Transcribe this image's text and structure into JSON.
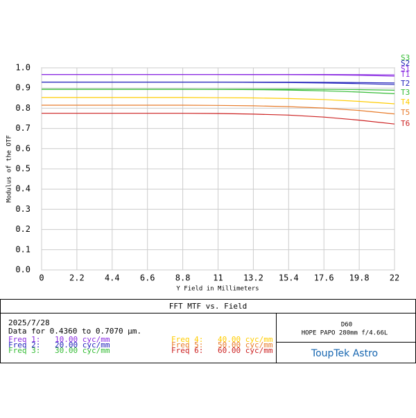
{
  "chart_data": {
    "type": "line",
    "xlabel": "Y Field in Millimeters",
    "ylabel": "Modulus of the OTF",
    "x": [
      0,
      2.2,
      4.4,
      6.6,
      8.8,
      11,
      13.2,
      15.4,
      17.6,
      19.8,
      22
    ],
    "xlim": [
      0,
      22
    ],
    "xticks": [
      0,
      2.2,
      4.4,
      6.6,
      8.8,
      11,
      13.2,
      15.4,
      17.6,
      19.8,
      22
    ],
    "ylim": [
      0,
      1
    ],
    "yticks": [
      {
        "value": 0,
        "label": "0.0"
      },
      {
        "value": 0.1,
        "label": "0.1"
      },
      {
        "value": 0.2,
        "label": "0.2"
      },
      {
        "value": 0.3,
        "label": "0.3"
      },
      {
        "value": 0.4,
        "label": "0.4"
      },
      {
        "value": 0.5,
        "label": "0.5"
      },
      {
        "value": 0.6,
        "label": "0.6"
      },
      {
        "value": 0.7,
        "label": "0.7"
      },
      {
        "value": 0.8,
        "label": "0.8"
      },
      {
        "value": 0.9,
        "label": "0.9"
      },
      {
        "value": 1,
        "label": "1.0"
      }
    ],
    "grid": true,
    "series": [
      {
        "name": "S3",
        "color": "#33bb33",
        "values": [
          0.894,
          0.894,
          0.894,
          0.894,
          0.894,
          0.894,
          0.894,
          0.894,
          0.893,
          0.892,
          0.889
        ]
      },
      {
        "name": "S2",
        "color": "#2222bb",
        "values": [
          0.929,
          0.929,
          0.929,
          0.929,
          0.929,
          0.929,
          0.929,
          0.929,
          0.928,
          0.927,
          0.925
        ]
      },
      {
        "name": "S1",
        "color": "#8a2be2",
        "values": [
          0.967,
          0.967,
          0.967,
          0.967,
          0.967,
          0.967,
          0.967,
          0.967,
          0.967,
          0.966,
          0.965
        ]
      },
      {
        "name": "T1",
        "color": "#8a2be2",
        "values": [
          0.967,
          0.967,
          0.967,
          0.967,
          0.967,
          0.967,
          0.966,
          0.966,
          0.965,
          0.963,
          0.959
        ]
      },
      {
        "name": "T2",
        "color": "#2222bb",
        "values": [
          0.929,
          0.929,
          0.929,
          0.929,
          0.929,
          0.929,
          0.928,
          0.927,
          0.925,
          0.922,
          0.917
        ]
      },
      {
        "name": "T3",
        "color": "#33bb33",
        "values": [
          0.894,
          0.894,
          0.894,
          0.894,
          0.894,
          0.893,
          0.892,
          0.89,
          0.886,
          0.88,
          0.872
        ]
      },
      {
        "name": "T4",
        "color": "#ffcc00",
        "values": [
          0.853,
          0.853,
          0.853,
          0.853,
          0.853,
          0.852,
          0.851,
          0.848,
          0.843,
          0.834,
          0.822
        ]
      },
      {
        "name": "T5",
        "color": "#e87b2a",
        "values": [
          0.815,
          0.815,
          0.815,
          0.815,
          0.815,
          0.814,
          0.812,
          0.808,
          0.801,
          0.789,
          0.772
        ]
      },
      {
        "name": "T6",
        "color": "#cc1f1f",
        "values": [
          0.775,
          0.775,
          0.775,
          0.775,
          0.775,
          0.774,
          0.771,
          0.766,
          0.756,
          0.741,
          0.722
        ]
      }
    ],
    "panel": {
      "title": "FFT MTF vs. Field",
      "date": "2025/7/28",
      "range": "Data for 0.4360 to 0.7070 µm.",
      "legend": [
        {
          "label": "Freq 1:",
          "value": "10.00 cyc/mm",
          "color": "#8a2be2"
        },
        {
          "label": "Freq 2:",
          "value": "20.00 cyc/mm",
          "color": "#2222bb"
        },
        {
          "label": "Freq 3:",
          "value": "30.00 cyc/mm",
          "color": "#33bb33"
        },
        {
          "label": "Freq 4:",
          "value": "40.00 cyc/mm",
          "color": "#ffcc00"
        },
        {
          "label": "Freq 5:",
          "value": "50.00 cyc/mm",
          "color": "#e87b2a"
        },
        {
          "label": "Freq 6:",
          "value": "60.00 cyc/mm",
          "color": "#cc1f1f"
        }
      ],
      "lens_code": "D60",
      "lens_name": "HOPE PAPO 280mm f/4.66L",
      "brand": "ToupTek Astro"
    }
  }
}
